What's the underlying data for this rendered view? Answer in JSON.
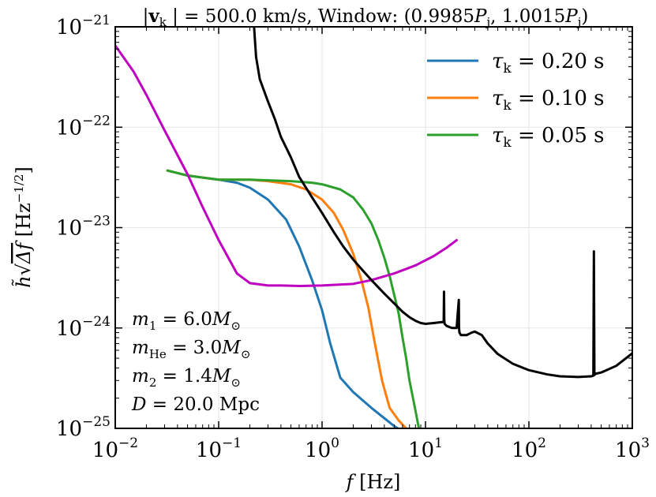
{
  "chart_data": {
    "type": "line",
    "title": "|v_k| = 500.0 km/s, Window: (0.9985P_j, 1.0015P_j)",
    "title_parts": {
      "vk": "v",
      "vk_sub": "k",
      "vk_rest": " | = 500.0 km/s, Window: (0.9985",
      "p": "P",
      "p_sub": "j",
      "mid": ", 1.0015",
      "end": ")"
    },
    "xlabel": "f [Hz]",
    "xlabel_parts": {
      "f": "f",
      "unit": " [Hz]"
    },
    "ylabel": "h̃ √Δf [Hz^-1/2]",
    "ylabel_parts": {
      "h": "h̃",
      "sqrt": "√",
      "df": "Δf",
      "unit": " [Hz",
      "exp": "−1/2",
      "close": "]"
    },
    "xscale": "log",
    "yscale": "log",
    "xlim": [
      0.01,
      1000
    ],
    "ylim": [
      1e-25,
      1e-21
    ],
    "x_ticks": [
      {
        "base": "10",
        "exp": "−2",
        "value": 0.01
      },
      {
        "base": "10",
        "exp": "−1",
        "value": 0.1
      },
      {
        "base": "10",
        "exp": "0",
        "value": 1
      },
      {
        "base": "10",
        "exp": "1",
        "value": 10
      },
      {
        "base": "10",
        "exp": "2",
        "value": 100
      },
      {
        "base": "10",
        "exp": "3",
        "value": 1000
      }
    ],
    "y_ticks": [
      {
        "base": "10",
        "exp": "−25",
        "value": 1e-25
      },
      {
        "base": "10",
        "exp": "−24",
        "value": 1e-24
      },
      {
        "base": "10",
        "exp": "−23",
        "value": 1e-23
      },
      {
        "base": "10",
        "exp": "−22",
        "value": 1e-22
      },
      {
        "base": "10",
        "exp": "−21",
        "value": 1e-21
      }
    ],
    "grid": true,
    "legend_position": "top-right",
    "series": [
      {
        "name": "τk = 0.20 s",
        "legend": {
          "tau": "τ",
          "sub": "k",
          "rest": " = 0.20 s"
        },
        "color": "#1f77b4",
        "x": [
          0.032,
          0.05,
          0.1,
          0.15,
          0.2,
          0.3,
          0.45,
          0.6,
          0.8,
          1.0,
          1.2,
          1.5,
          2.0,
          3.0,
          5.0,
          7.0
        ],
        "y": [
          3.7e-23,
          3.3e-23,
          3e-23,
          2.8e-23,
          2.5e-23,
          1.9e-23,
          1.2e-23,
          6.5e-24,
          3e-24,
          1.5e-24,
          7e-25,
          3.2e-25,
          2.3e-25,
          1.6e-25,
          1.05e-25,
          8.5e-26
        ]
      },
      {
        "name": "τk = 0.10 s",
        "legend": {
          "tau": "τ",
          "sub": "k",
          "rest": " = 0.10 s"
        },
        "color": "#ff7f0e",
        "x": [
          0.032,
          0.05,
          0.1,
          0.2,
          0.3,
          0.5,
          0.7,
          1.0,
          1.3,
          1.6,
          2.0,
          2.4,
          2.8,
          3.2,
          3.8,
          4.5,
          5.5,
          6.5,
          7.5
        ],
        "y": [
          3.7e-23,
          3.3e-23,
          3e-23,
          3e-23,
          2.9e-23,
          2.7e-23,
          2.4e-23,
          1.9e-23,
          1.4e-23,
          9.5e-24,
          5.5e-24,
          3e-24,
          1.6e-24,
          7.5e-25,
          3e-25,
          1.6e-25,
          1.2e-25,
          1e-25,
          8.5e-26
        ]
      },
      {
        "name": "τk = 0.05 s",
        "legend": {
          "tau": "τ",
          "sub": "k",
          "rest": " = 0.05 s"
        },
        "color": "#2ca02c",
        "x": [
          0.032,
          0.05,
          0.1,
          0.2,
          0.5,
          0.8,
          1.0,
          1.5,
          2.0,
          2.5,
          3.0,
          3.5,
          4.0,
          4.5,
          5.0,
          5.5,
          6.0,
          6.5,
          7.0,
          8.0,
          9.0
        ],
        "y": [
          3.7e-23,
          3.3e-23,
          3e-23,
          3e-23,
          2.9e-23,
          2.8e-23,
          2.7e-23,
          2.4e-23,
          2e-23,
          1.5e-23,
          1.1e-23,
          7.5e-24,
          5e-24,
          3.3e-24,
          2.1e-24,
          1.4e-24,
          8e-25,
          5e-25,
          3e-25,
          1.5e-25,
          8e-26
        ]
      },
      {
        "name": "",
        "color": "#c000c0",
        "x": [
          0.01,
          0.015,
          0.02,
          0.03,
          0.05,
          0.07,
          0.1,
          0.15,
          0.2,
          0.3,
          0.4,
          0.6,
          1.0,
          2.0,
          3.0,
          5.0,
          8.0,
          12.0,
          16.0,
          20.0
        ],
        "y": [
          6.5e-22,
          3.6e-22,
          2.1e-22,
          9.3e-23,
          3.4e-23,
          1.6e-23,
          7.5e-24,
          3.5e-24,
          2.8e-24,
          2.65e-24,
          2.65e-24,
          2.62e-24,
          2.65e-24,
          2.75e-24,
          3e-24,
          3.5e-24,
          4.2e-24,
          5.2e-24,
          6.3e-24,
          7.5e-24
        ]
      },
      {
        "name": "",
        "color": "#000000",
        "x": [
          0.22,
          0.23,
          0.25,
          0.3,
          0.35,
          0.4,
          0.5,
          0.6,
          0.8,
          1.0,
          1.3,
          1.6,
          2.0,
          2.5,
          3.0,
          4.0,
          5.0,
          6.0,
          7.0,
          8.0,
          9.0,
          10.0,
          12.0,
          15.0,
          15.1,
          15.2,
          15.3,
          16.0,
          18.0,
          20.0,
          21.0,
          21.1,
          21.3,
          22.0,
          25.0,
          28.0,
          30.0,
          35.0,
          40.0,
          50.0,
          70.0,
          100.0,
          150.0,
          200.0,
          300.0,
          400.0,
          420.0,
          425.0,
          430.0,
          440.0,
          500.0,
          700.0,
          1000.0
        ],
        "y": [
          1e-21,
          5e-22,
          3e-22,
          1.8e-22,
          1.2e-22,
          8e-23,
          5e-23,
          3.2e-23,
          2e-23,
          1.4e-23,
          9e-24,
          6.5e-24,
          4.8e-24,
          3.7e-24,
          3e-24,
          2.2e-24,
          1.75e-24,
          1.45e-24,
          1.28e-24,
          1.18e-24,
          1.12e-24,
          1.1e-24,
          1.12e-24,
          1.15e-24,
          2.3e-24,
          1.18e-24,
          1.1e-24,
          1.05e-24,
          1e-24,
          1e-24,
          1.9e-24,
          1e-24,
          9e-25,
          8.5e-25,
          8.5e-25,
          9e-25,
          9.2e-25,
          8.5e-25,
          7e-25,
          5.5e-25,
          4.4e-25,
          3.8e-25,
          3.45e-25,
          3.3e-25,
          3.25e-25,
          3.3e-25,
          3.35e-25,
          5.8e-24,
          3.4e-25,
          3.5e-25,
          3.6e-25,
          4.2e-25,
          5.6e-25
        ]
      }
    ],
    "annotations": [
      {
        "base": "m",
        "sub": "1",
        "rest": " = 6.0",
        "M": "M",
        "sun": "⊙"
      },
      {
        "base": "m",
        "sub": "He",
        "rest": " = 3.0",
        "M": "M",
        "sun": "⊙"
      },
      {
        "base": "m",
        "sub": "2",
        "rest": " = 1.4",
        "M": "M",
        "sun": "⊙"
      },
      {
        "base": "D",
        "sub": "",
        "rest": " = 20.0 Mpc",
        "M": "",
        "sun": ""
      }
    ]
  }
}
